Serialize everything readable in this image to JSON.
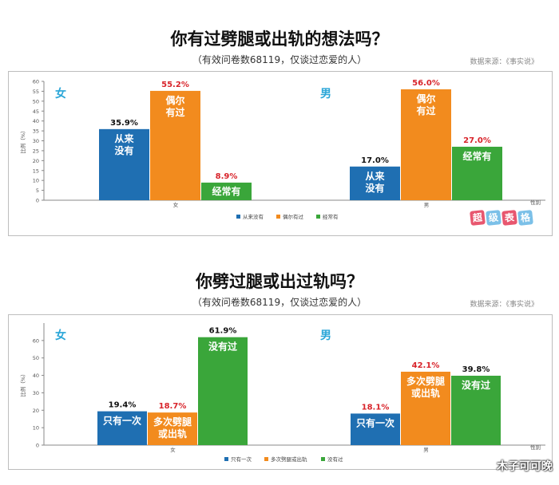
{
  "chart_data": [
    {
      "type": "bar",
      "title": "你有过劈腿或出轨的想法吗？",
      "subtitle": "（有效问卷数68119，仅谈过恋爱的人）",
      "source": "数据来源：《事实说》",
      "ylabel": "比例（%）",
      "xlabel": "性别",
      "ylim": [
        0,
        60
      ],
      "yticks": [
        0,
        5,
        10,
        15,
        20,
        25,
        30,
        35,
        40,
        45,
        50,
        55,
        60
      ],
      "grid": false,
      "legend_position": "bottom",
      "categories": [
        "女",
        "男"
      ],
      "group_titles": [
        "女",
        "男"
      ],
      "series": [
        {
          "name": "从来没有",
          "color": "#1f6fb2",
          "values": [
            35.9,
            17.0
          ],
          "value_labels": [
            "35.9%",
            "17.0%"
          ],
          "bar_label": "从来\n没有"
        },
        {
          "name": "偶尔有过",
          "color": "#f28b1e",
          "values": [
            55.2,
            56.0
          ],
          "value_labels": [
            "55.2%",
            "56.0%"
          ],
          "bar_label": "偶尔\n有过"
        },
        {
          "name": "经常有",
          "color": "#3aa63a",
          "values": [
            8.9,
            27.0
          ],
          "value_labels": [
            "8.9%",
            "27.0%"
          ],
          "bar_label": "经常有"
        }
      ]
    },
    {
      "type": "bar",
      "title": "你劈过腿或出过轨吗？",
      "subtitle": "（有效问卷数68119，仅谈过恋爱的人）",
      "source": "数据来源：《事实说》",
      "ylabel": "比例（%）",
      "xlabel": "性别",
      "ylim": [
        0,
        70
      ],
      "yticks": [
        0,
        10,
        20,
        30,
        40,
        50,
        60
      ],
      "grid": false,
      "legend_position": "bottom",
      "categories": [
        "女",
        "男"
      ],
      "group_titles": [
        "女",
        "男"
      ],
      "series": [
        {
          "name": "只有一次",
          "color": "#1f6fb2",
          "values": [
            19.4,
            18.1
          ],
          "value_labels": [
            "19.4%",
            "18.1%"
          ],
          "bar_label": "只有一次"
        },
        {
          "name": "多次劈腿或出轨",
          "color": "#f28b1e",
          "values": [
            18.7,
            42.1
          ],
          "value_labels": [
            "18.7%",
            "42.1%"
          ],
          "bar_label": "多次劈腿\n或出轨"
        },
        {
          "name": "没有过",
          "color": "#3aa63a",
          "values": [
            61.9,
            39.8
          ],
          "value_labels": [
            "61.9%",
            "39.8%"
          ],
          "bar_label": "没有过"
        }
      ]
    }
  ],
  "watermark": {
    "chars": [
      "超",
      "级",
      "表",
      "格"
    ],
    "colors": [
      "#e8576f",
      "#7bc0e8",
      "#e8576f",
      "#7bc0e8"
    ]
  },
  "footer_text": "木子可可晚",
  "group_title_color": "#2aa6d8",
  "value_label_colors": {
    "女": "#000000",
    "男_first": "#000000"
  }
}
